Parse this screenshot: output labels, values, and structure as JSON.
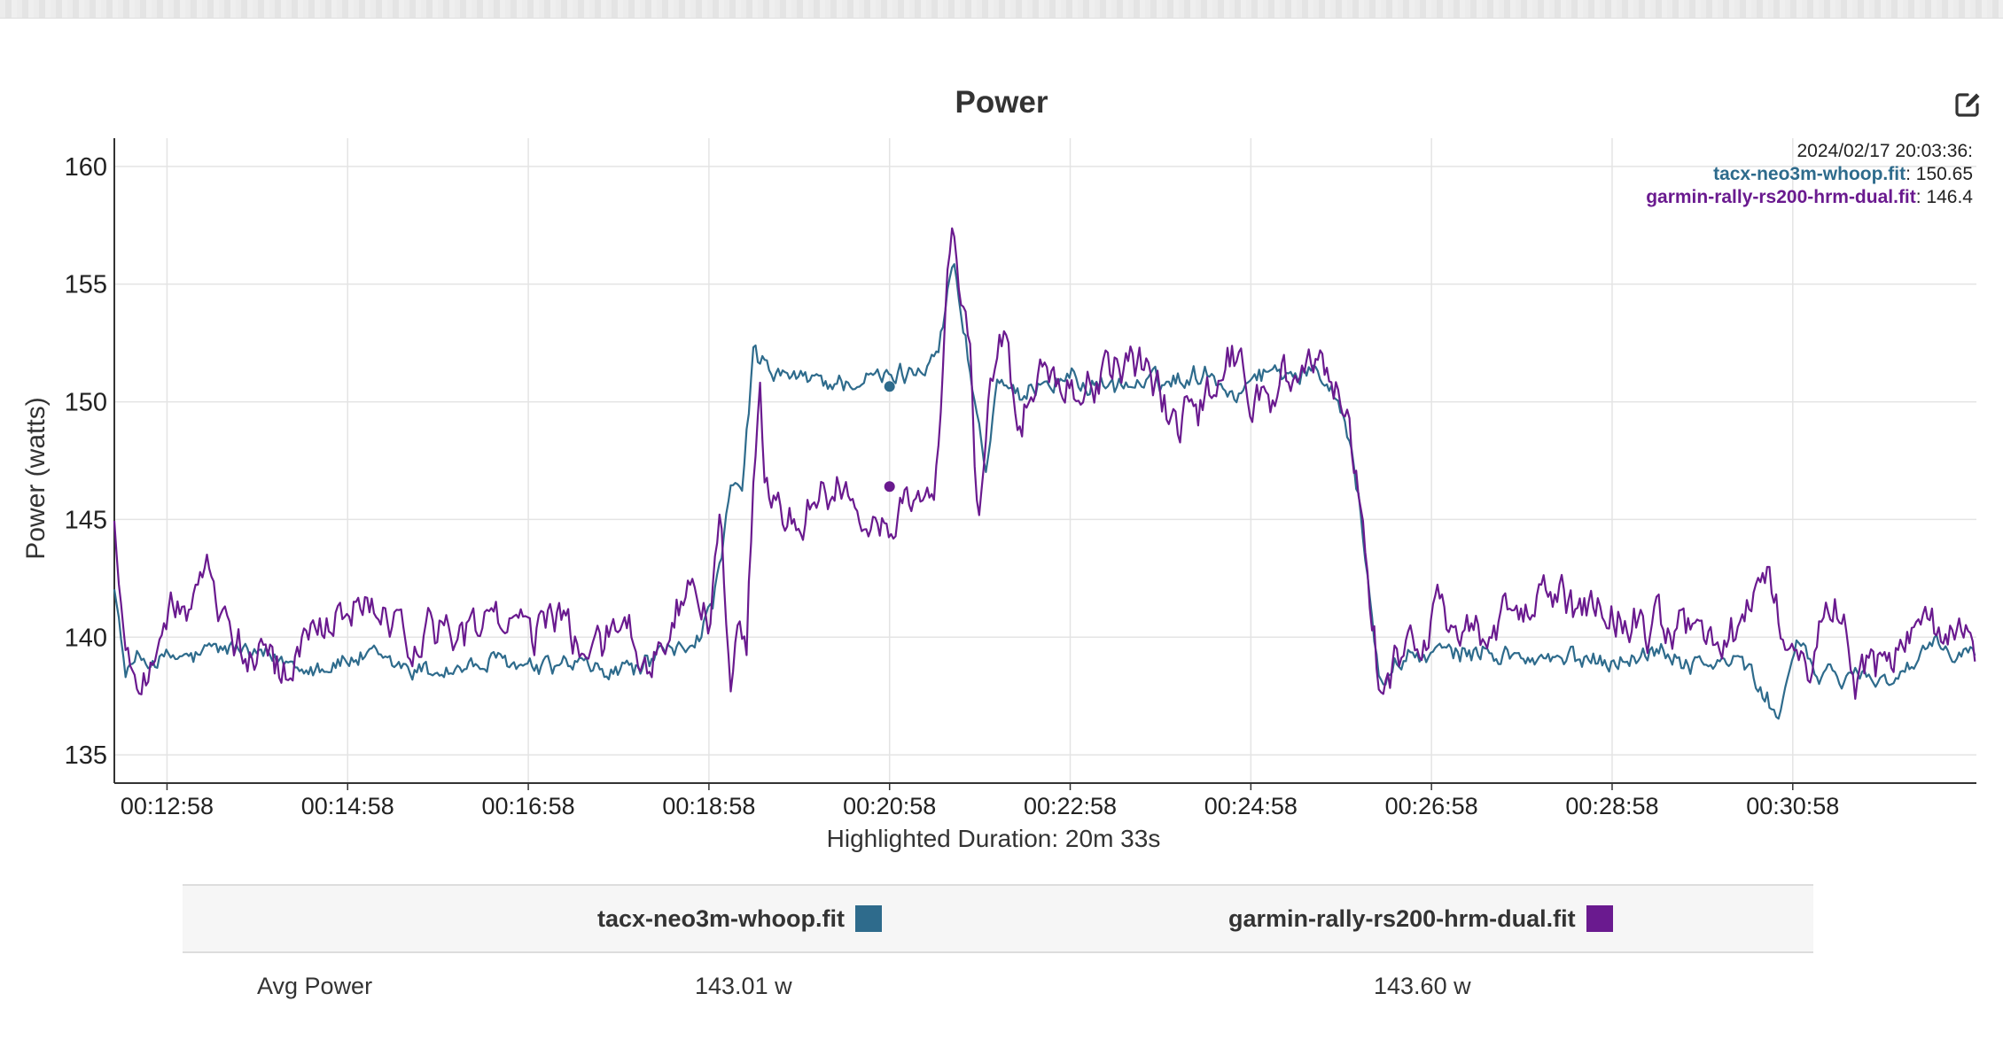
{
  "chart_data": {
    "type": "line",
    "title": "Power",
    "ylabel": "Power (watts)",
    "xlabel": "Highlighted Duration: 20m 33s",
    "ylim": [
      133.8,
      161.2
    ],
    "xlim_seconds": [
      743,
      1980
    ],
    "yticks": [
      135,
      140,
      145,
      150,
      155,
      160
    ],
    "xticks": [
      "00:12:58",
      "00:14:58",
      "00:16:58",
      "00:18:58",
      "00:20:58",
      "00:22:58",
      "00:24:58",
      "00:26:58",
      "00:28:58",
      "00:30:58"
    ],
    "x_tick_seconds": [
      778,
      898,
      1018,
      1138,
      1258,
      1378,
      1498,
      1618,
      1738,
      1858
    ],
    "grid": true,
    "series": [
      {
        "name": "tacx-neo3m-whoop.fit",
        "color": "#2e6b8c",
        "anchors": [
          [
            743,
            142.5
          ],
          [
            750,
            138.5
          ],
          [
            760,
            139
          ],
          [
            790,
            139
          ],
          [
            820,
            139.5
          ],
          [
            850,
            139
          ],
          [
            880,
            139
          ],
          [
            920,
            139
          ],
          [
            950,
            138.7
          ],
          [
            980,
            138.7
          ],
          [
            1000,
            138.8
          ],
          [
            1020,
            138.8
          ],
          [
            1050,
            139
          ],
          [
            1075,
            138.5
          ],
          [
            1095,
            138.8
          ],
          [
            1110,
            139.5
          ],
          [
            1128,
            139.8
          ],
          [
            1140,
            141
          ],
          [
            1148,
            144
          ],
          [
            1153,
            146
          ],
          [
            1160,
            146
          ],
          [
            1168,
            152.5
          ],
          [
            1172,
            151.3
          ],
          [
            1200,
            150.9
          ],
          [
            1230,
            150.8
          ],
          [
            1255,
            150.9
          ],
          [
            1275,
            151.2
          ],
          [
            1290,
            152.2
          ],
          [
            1300,
            156
          ],
          [
            1305,
            154
          ],
          [
            1315,
            150
          ],
          [
            1322,
            147
          ],
          [
            1330,
            151
          ],
          [
            1345,
            149.5
          ],
          [
            1360,
            151
          ],
          [
            1380,
            151.2
          ],
          [
            1400,
            150.5
          ],
          [
            1430,
            150.8
          ],
          [
            1450,
            151
          ],
          [
            1470,
            151.5
          ],
          [
            1490,
            150.3
          ],
          [
            1500,
            151.4
          ],
          [
            1520,
            151.4
          ],
          [
            1545,
            151.2
          ],
          [
            1560,
            150
          ],
          [
            1570,
            146
          ],
          [
            1578,
            141
          ],
          [
            1585,
            138
          ],
          [
            1595,
            139
          ],
          [
            1620,
            139.3
          ],
          [
            1660,
            139.3
          ],
          [
            1700,
            139
          ],
          [
            1740,
            139.2
          ],
          [
            1770,
            139.4
          ],
          [
            1800,
            138.7
          ],
          [
            1825,
            139
          ],
          [
            1840,
            137.2
          ],
          [
            1850,
            136.8
          ],
          [
            1860,
            140
          ],
          [
            1875,
            138
          ],
          [
            1890,
            138.5
          ],
          [
            1920,
            138.2
          ],
          [
            1950,
            139.3
          ],
          [
            1980,
            139.2
          ]
        ],
        "amplitude": 0.4,
        "marker": [
          1258,
          150.65
        ]
      },
      {
        "name": "garmin-rally-rs200-hrm-dual.fit",
        "color": "#6a1a8f",
        "anchors": [
          [
            743,
            145
          ],
          [
            750,
            139
          ],
          [
            760,
            138.5
          ],
          [
            780,
            140.5
          ],
          [
            795,
            141.5
          ],
          [
            805,
            142.8
          ],
          [
            820,
            140.5
          ],
          [
            840,
            139
          ],
          [
            860,
            137.8
          ],
          [
            880,
            140.8
          ],
          [
            900,
            141.2
          ],
          [
            940,
            140.5
          ],
          [
            980,
            140.3
          ],
          [
            1000,
            141
          ],
          [
            1020,
            140.8
          ],
          [
            1040,
            141.2
          ],
          [
            1060,
            139.5
          ],
          [
            1080,
            140.3
          ],
          [
            1100,
            139
          ],
          [
            1112,
            141
          ],
          [
            1122,
            142
          ],
          [
            1138,
            141
          ],
          [
            1145,
            146
          ],
          [
            1152,
            138
          ],
          [
            1158,
            141.5
          ],
          [
            1163,
            140
          ],
          [
            1167,
            146
          ],
          [
            1172,
            151
          ],
          [
            1175,
            146
          ],
          [
            1185,
            145
          ],
          [
            1200,
            144.8
          ],
          [
            1215,
            145.8
          ],
          [
            1230,
            146.5
          ],
          [
            1242,
            145
          ],
          [
            1255,
            145.2
          ],
          [
            1265,
            145.5
          ],
          [
            1280,
            146
          ],
          [
            1287,
            146
          ],
          [
            1291,
            148
          ],
          [
            1296,
            155
          ],
          [
            1300,
            157
          ],
          [
            1305,
            154
          ],
          [
            1312,
            152
          ],
          [
            1315,
            146
          ],
          [
            1318,
            144
          ],
          [
            1321,
            148
          ],
          [
            1326,
            151
          ],
          [
            1334,
            152.5
          ],
          [
            1345,
            148.5
          ],
          [
            1360,
            151.5
          ],
          [
            1370,
            151
          ],
          [
            1380,
            151
          ],
          [
            1400,
            151
          ],
          [
            1420,
            152
          ],
          [
            1440,
            150
          ],
          [
            1460,
            149
          ],
          [
            1480,
            152
          ],
          [
            1490,
            151.5
          ],
          [
            1500,
            149.5
          ],
          [
            1520,
            151
          ],
          [
            1545,
            151
          ],
          [
            1560,
            150
          ],
          [
            1570,
            146
          ],
          [
            1578,
            141
          ],
          [
            1585,
            138
          ],
          [
            1595,
            139
          ],
          [
            1620,
            141
          ],
          [
            1660,
            140.5
          ],
          [
            1700,
            141
          ],
          [
            1740,
            140.5
          ],
          [
            1770,
            140.8
          ],
          [
            1800,
            139.5
          ],
          [
            1825,
            140.5
          ],
          [
            1840,
            142.5
          ],
          [
            1850,
            140
          ],
          [
            1860,
            138.5
          ],
          [
            1870,
            139
          ],
          [
            1880,
            142
          ],
          [
            1890,
            140
          ],
          [
            1900,
            138
          ],
          [
            1920,
            139.5
          ],
          [
            1950,
            140.5
          ],
          [
            1980,
            139.5
          ]
        ],
        "amplitude": 0.8,
        "marker": [
          1258,
          146.4
        ]
      }
    ],
    "tooltip": {
      "time": "2024/02/17 20:03:36:",
      "entries": [
        {
          "name": "tacx-neo3m-whoop.fit",
          "value": "150.65",
          "color": "#2e6b8c"
        },
        {
          "name": "garmin-rally-rs200-hrm-dual.fit",
          "value": "146.4",
          "color": "#6a1a8f"
        }
      ]
    }
  },
  "edit_icon": "edit-icon",
  "summary": {
    "columns": [
      {
        "name": "tacx-neo3m-whoop.fit",
        "color": "#2e6b8c"
      },
      {
        "name": "garmin-rally-rs200-hrm-dual.fit",
        "color": "#6a1a8f"
      }
    ],
    "rows": [
      {
        "label": "Avg Power",
        "values": [
          "143.01 w",
          "143.60 w"
        ]
      }
    ]
  }
}
